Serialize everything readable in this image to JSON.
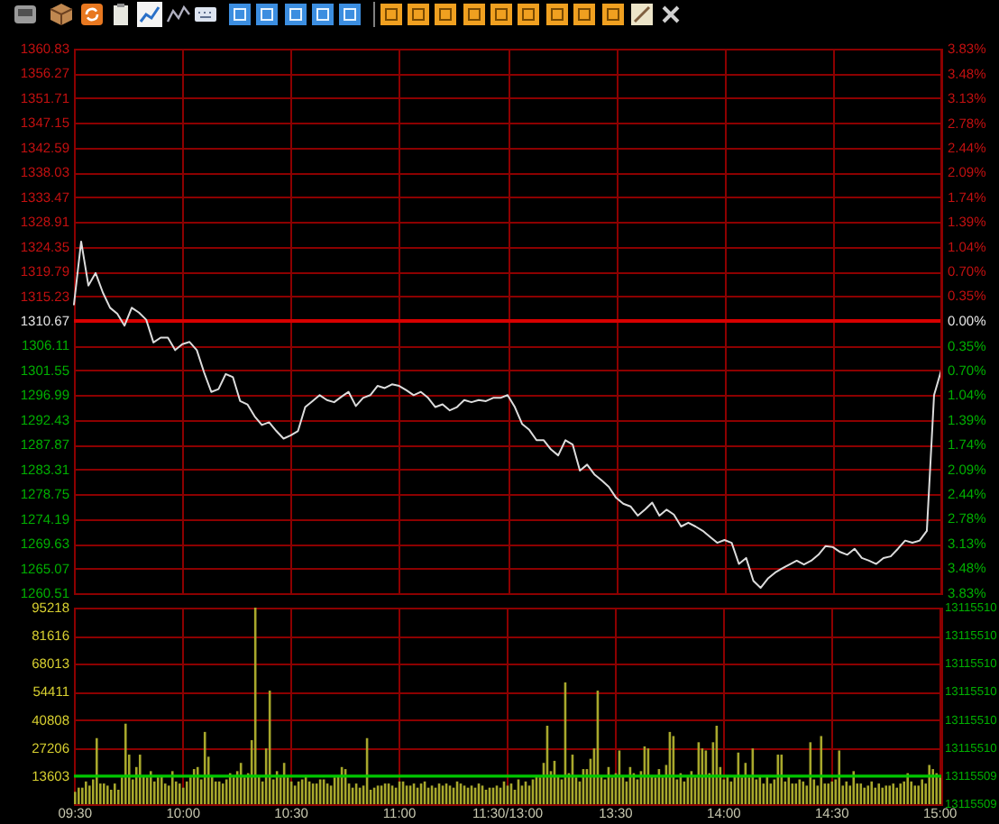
{
  "chart_data": [
    {
      "type": "line",
      "categories": [
        null,
        null,
        null,
        null,
        null,
        null,
        null,
        null,
        null,
        null,
        null,
        null,
        null,
        null,
        null,
        null,
        null,
        null,
        null,
        null,
        null,
        null,
        null,
        null,
        null,
        null,
        null,
        null,
        null,
        null,
        null,
        null,
        null,
        null,
        null,
        null,
        null,
        null,
        null,
        null,
        null,
        null,
        null,
        null,
        null,
        null,
        null,
        null,
        null,
        null,
        null,
        null,
        null,
        null,
        null,
        null,
        null,
        null,
        null,
        null,
        null,
        null,
        null,
        null,
        null,
        null,
        null,
        null,
        null,
        null,
        null,
        null,
        null,
        null,
        null,
        null,
        null,
        null,
        null,
        null,
        null,
        null,
        null,
        null,
        null,
        null,
        null,
        null,
        null,
        null,
        null,
        null,
        null,
        null,
        null,
        null,
        null,
        null,
        null,
        null,
        null,
        null,
        null,
        null,
        null,
        null,
        null,
        null,
        null,
        null,
        null,
        null,
        null,
        null,
        null,
        null,
        null,
        null,
        null,
        null,
        null
      ],
      "series": [
        {
          "color": "#dcdcdc",
          "values": [
            1313.7,
            1325.3,
            1317.2,
            1319.5,
            1315.9,
            1313.1,
            1312.0,
            1309.8,
            1313.1,
            1312.2,
            1310.9,
            1306.7,
            1307.6,
            1307.6,
            1305.3,
            1306.4,
            1306.8,
            1305.3,
            1301.2,
            1297.6,
            1298.1,
            1300.9,
            1300.3,
            1295.9,
            1295.3,
            1293.1,
            1291.5,
            1292.0,
            1290.4,
            1289.0,
            1289.6,
            1290.4,
            1294.8,
            1295.9,
            1297.0,
            1296.1,
            1295.7,
            1296.7,
            1297.6,
            1295.0,
            1296.5,
            1297.0,
            1298.7,
            1298.3,
            1299.0,
            1298.7,
            1297.9,
            1297.0,
            1297.6,
            1296.5,
            1294.8,
            1295.3,
            1294.2,
            1294.8,
            1296.1,
            1295.7,
            1296.1,
            1295.9,
            1296.5,
            1296.5,
            1297.0,
            1294.8,
            1291.7,
            1290.6,
            1288.7,
            1288.7,
            1287.0,
            1285.9,
            1288.7,
            1287.9,
            1283.1,
            1284.2,
            1282.4,
            1281.3,
            1280.1,
            1278.1,
            1277.0,
            1276.5,
            1274.8,
            1275.9,
            1277.2,
            1274.8,
            1275.9,
            1275.0,
            1272.8,
            1273.5,
            1272.8,
            1272.0,
            1270.9,
            1269.8,
            1270.3,
            1269.8,
            1265.9,
            1267.0,
            1262.8,
            1261.5,
            1263.2,
            1264.3,
            1265.1,
            1265.8,
            1266.5,
            1265.8,
            1266.5,
            1267.6,
            1269.2,
            1269.0,
            1268.1,
            1267.6,
            1268.7,
            1267.0,
            1266.5,
            1265.9,
            1267.0,
            1267.3,
            1268.7,
            1270.2,
            1269.8,
            1270.2,
            1272.0,
            1297.0,
            1301.6
          ]
        }
      ],
      "ylim": [
        1260.51,
        1360.83
      ],
      "yticks": [
        1260.51,
        1265.07,
        1269.63,
        1274.19,
        1278.75,
        1283.31,
        1287.87,
        1292.43,
        1296.99,
        1301.55,
        1306.11,
        1310.67,
        1315.23,
        1319.79,
        1324.35,
        1328.91,
        1333.47,
        1338.03,
        1342.59,
        1347.15,
        1351.71,
        1356.27,
        1360.83
      ],
      "y2lim": [
        -3.83,
        3.83
      ],
      "y2ticks": [
        {
          "value": -3.83,
          "label": "3.83%"
        },
        {
          "value": -3.48,
          "label": "3.48%"
        },
        {
          "value": -3.13,
          "label": "3.13%"
        },
        {
          "value": -2.78,
          "label": "2.78%"
        },
        {
          "value": -2.44,
          "label": "2.44%"
        },
        {
          "value": -2.09,
          "label": "2.09%"
        },
        {
          "value": -1.74,
          "label": "1.74%"
        },
        {
          "value": -1.39,
          "label": "1.39%"
        },
        {
          "value": -1.04,
          "label": "1.04%"
        },
        {
          "value": -0.7,
          "label": "0.70%"
        },
        {
          "value": -0.35,
          "label": "0.35%"
        },
        {
          "value": 0,
          "label": "0.00%"
        },
        {
          "value": 0.35,
          "label": "0.35%"
        },
        {
          "value": 0.7,
          "label": "0.70%"
        },
        {
          "value": 1.04,
          "label": "1.04%"
        },
        {
          "value": 1.39,
          "label": "1.39%"
        },
        {
          "value": 1.74,
          "label": "1.74%"
        },
        {
          "value": 2.09,
          "label": "2.09%"
        },
        {
          "value": 2.44,
          "label": "2.44%"
        },
        {
          "value": 2.78,
          "label": "2.78%"
        },
        {
          "value": 3.13,
          "label": "3.13%"
        },
        {
          "value": 3.48,
          "label": "3.48%"
        },
        {
          "value": 3.83,
          "label": "3.83%"
        }
      ],
      "grid": true,
      "ref_lines": [
        {
          "axis": "y",
          "value": 1310.67,
          "color": "#d80000"
        }
      ],
      "tick_labels": "y"
    },
    {
      "type": "bar",
      "categories": [
        "09:30",
        null,
        null,
        null,
        null,
        null,
        null,
        null,
        null,
        null,
        null,
        null,
        null,
        null,
        null,
        null,
        null,
        null,
        null,
        null,
        null,
        null,
        null,
        null,
        null,
        null,
        null,
        null,
        null,
        null,
        "10:00",
        null,
        null,
        null,
        null,
        null,
        null,
        null,
        null,
        null,
        null,
        null,
        null,
        null,
        null,
        null,
        null,
        null,
        null,
        null,
        null,
        null,
        null,
        null,
        null,
        null,
        null,
        null,
        null,
        null,
        "10:30",
        null,
        null,
        null,
        null,
        null,
        null,
        null,
        null,
        null,
        null,
        null,
        null,
        null,
        null,
        null,
        null,
        null,
        null,
        null,
        null,
        null,
        null,
        null,
        null,
        null,
        null,
        null,
        null,
        null,
        "11:00",
        null,
        null,
        null,
        null,
        null,
        null,
        null,
        null,
        null,
        null,
        null,
        null,
        null,
        null,
        null,
        null,
        null,
        null,
        null,
        null,
        null,
        null,
        null,
        null,
        null,
        null,
        null,
        null,
        null,
        "11:30/13:00",
        null,
        null,
        null,
        null,
        null,
        null,
        null,
        null,
        null,
        null,
        null,
        null,
        null,
        null,
        null,
        null,
        null,
        null,
        null,
        null,
        null,
        null,
        null,
        null,
        null,
        null,
        null,
        null,
        null,
        "13:30",
        null,
        null,
        null,
        null,
        null,
        null,
        null,
        null,
        null,
        null,
        null,
        null,
        null,
        null,
        null,
        null,
        null,
        null,
        null,
        null,
        null,
        null,
        null,
        null,
        null,
        null,
        null,
        null,
        null,
        "14:00",
        null,
        null,
        null,
        null,
        null,
        null,
        null,
        null,
        null,
        null,
        null,
        null,
        null,
        null,
        null,
        null,
        null,
        null,
        null,
        null,
        null,
        null,
        null,
        null,
        null,
        null,
        null,
        null,
        null,
        "14:30",
        null,
        null,
        null,
        null,
        null,
        null,
        null,
        null,
        null,
        null,
        null,
        null,
        null,
        null,
        null,
        null,
        null,
        null,
        null,
        null,
        null,
        null,
        null,
        null,
        null,
        null,
        null,
        null,
        null,
        "15:00"
      ],
      "values": [
        6000,
        8000,
        8000,
        11000,
        9000,
        12000,
        32000,
        10000,
        10000,
        9000,
        7000,
        10000,
        7000,
        13000,
        39000,
        24000,
        12000,
        18000,
        24000,
        14000,
        13000,
        16000,
        11000,
        13000,
        14000,
        10000,
        9000,
        16000,
        11000,
        10000,
        8000,
        11000,
        13000,
        17000,
        18000,
        12000,
        35000,
        23000,
        14000,
        11000,
        11000,
        10000,
        12000,
        15000,
        13000,
        16000,
        20000,
        13000,
        15000,
        31000,
        95218,
        14000,
        11000,
        27000,
        55000,
        12000,
        16000,
        13000,
        20000,
        13000,
        11000,
        9000,
        11000,
        12000,
        14000,
        11000,
        10000,
        10000,
        12000,
        12000,
        10000,
        9000,
        13000,
        14000,
        18000,
        17000,
        10000,
        8000,
        10000,
        8000,
        9000,
        32000,
        7000,
        8000,
        9000,
        9000,
        10000,
        10000,
        9000,
        8000,
        11000,
        11000,
        9000,
        9000,
        10000,
        8000,
        10000,
        11000,
        8000,
        9000,
        8000,
        10000,
        9000,
        10000,
        9000,
        8000,
        11000,
        10000,
        9000,
        8000,
        9000,
        8000,
        10000,
        9000,
        7000,
        8000,
        8000,
        9000,
        8000,
        11000,
        9000,
        10000,
        7000,
        12000,
        9000,
        11000,
        9000,
        12000,
        14000,
        13000,
        20000,
        38000,
        16000,
        21000,
        14000,
        12000,
        59000,
        15000,
        24000,
        13000,
        11000,
        17000,
        17000,
        22000,
        27000,
        55000,
        14000,
        12000,
        18000,
        13000,
        15000,
        26000,
        14000,
        11000,
        18000,
        15000,
        12000,
        16000,
        28000,
        27000,
        14000,
        13000,
        17000,
        13000,
        19000,
        35000,
        33000,
        12000,
        15000,
        11000,
        14000,
        16000,
        13000,
        30000,
        27000,
        26000,
        15000,
        30000,
        38000,
        18000,
        12000,
        14000,
        11000,
        14000,
        25000,
        13000,
        20000,
        13000,
        27000,
        12000,
        14000,
        10000,
        14000,
        10000,
        12000,
        24000,
        24000,
        11000,
        14000,
        10000,
        10000,
        12000,
        11000,
        9000,
        30000,
        12000,
        9000,
        33000,
        10000,
        10000,
        11000,
        12000,
        26000,
        9000,
        11000,
        9000,
        16000,
        10000,
        10000,
        8000,
        9000,
        11000,
        8000,
        10000,
        8000,
        9000,
        9000,
        10000,
        8000,
        10000,
        11000,
        15000,
        11000,
        9000,
        9000,
        12000,
        10000,
        19000,
        17000,
        15000,
        13000
      ],
      "color": "#a8a82c",
      "ylim": [
        0,
        95218
      ],
      "yticks": [
        13603,
        27206,
        40808,
        54411,
        68013,
        81616,
        95218
      ],
      "grid": true,
      "ref_lines": [
        {
          "axis": "y",
          "value": 13603,
          "color": "#00c800"
        }
      ],
      "annotations": [
        "13115510",
        "13115510",
        "13115510",
        "13115510",
        "13115510",
        "13115510",
        "13115509",
        "13115509"
      ]
    }
  ]
}
